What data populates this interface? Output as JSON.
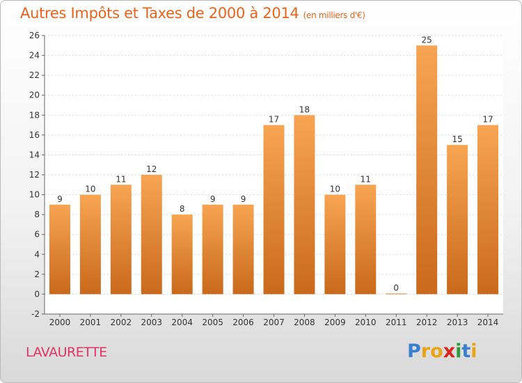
{
  "chart_data": {
    "type": "bar",
    "title": "Autres Impôts et Taxes de 2000 à 2014",
    "subtitle": "(en milliers d'€)",
    "categories": [
      "2000",
      "2001",
      "2002",
      "2003",
      "2004",
      "2005",
      "2006",
      "2007",
      "2008",
      "2009",
      "2010",
      "2011",
      "2012",
      "2013",
      "2014"
    ],
    "values": [
      9,
      10,
      11,
      12,
      8,
      9,
      9,
      17,
      18,
      10,
      11,
      0,
      25,
      15,
      17
    ],
    "ylim": [
      -2,
      26
    ],
    "yticks": [
      -2,
      0,
      2,
      4,
      6,
      8,
      10,
      12,
      14,
      16,
      18,
      20,
      22,
      24,
      26
    ],
    "grid": "horizontal",
    "bar_color_top": "#f7a552",
    "bar_color_bottom": "#c9691c"
  },
  "commune": "LAVAURETTE",
  "logo": {
    "text": "Proxiti",
    "letters": [
      "P",
      "r",
      "o",
      "x",
      "i",
      "t",
      "i"
    ],
    "colors": [
      "#3a7fd1",
      "#e8a317",
      "#e8a317",
      "#d9261c",
      "#2e9b3e",
      "#3a7fd1",
      "#e8a317"
    ]
  }
}
